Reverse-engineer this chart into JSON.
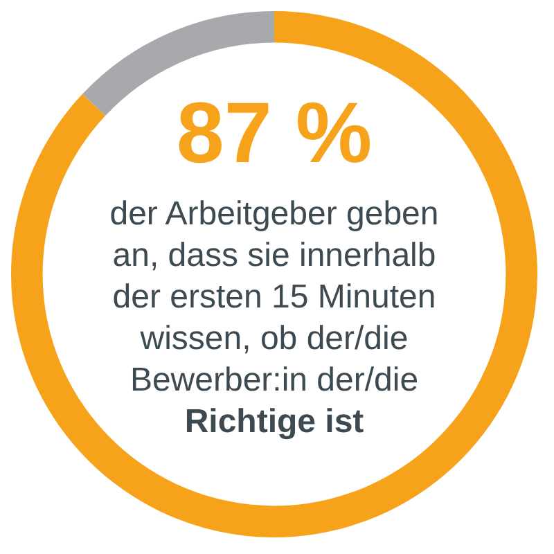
{
  "chart_data": {
    "type": "donut",
    "categories": [
      null,
      null
    ],
    "values": [
      87,
      13
    ],
    "colors": [
      "#f7a21b",
      "#a7a9ac"
    ],
    "value_labels": [
      "87 %",
      null
    ],
    "annotations": [
      "der Arbeitgeber geben",
      "an, dass sie innerhalb",
      "der ersten 15 Minuten",
      "wissen, ob der/die",
      "Bewerber:in der/die",
      "Richtige ist"
    ]
  }
}
